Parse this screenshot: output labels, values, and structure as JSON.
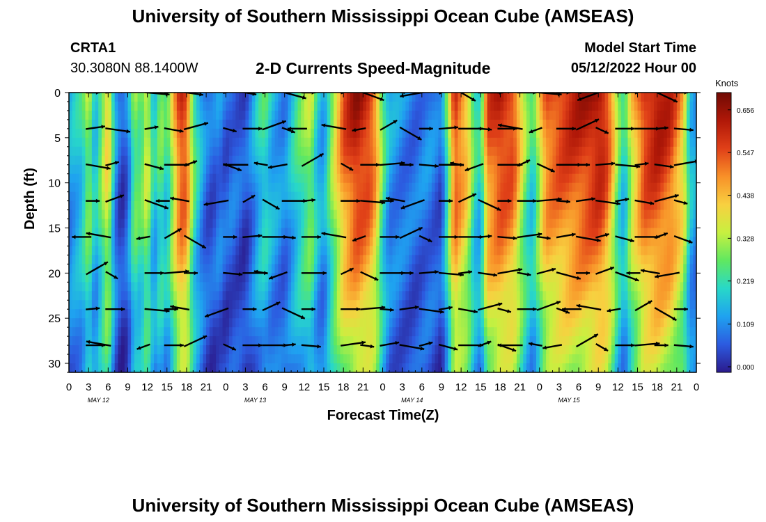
{
  "header": {
    "title": "University of Southern Mississippi Ocean Cube (AMSEAS)",
    "station_id": "CRTA1",
    "coordinates": "30.3080N  88.1400W",
    "model_label": "Model Start Time",
    "model_start": "05/12/2022 Hour 00"
  },
  "chart_data": {
    "type": "heatmap",
    "title": "2-D Currents Speed-Magnitude",
    "xlabel": "Forecast Time(Z)",
    "ylabel": "Depth (ft)",
    "x_tick_labels": [
      "0",
      "3",
      "6",
      "9",
      "12",
      "15",
      "18",
      "21",
      "0",
      "3",
      "6",
      "9",
      "12",
      "15",
      "18",
      "21",
      "0",
      "3",
      "6",
      "9",
      "12",
      "15",
      "18",
      "21",
      "0",
      "3",
      "6",
      "9",
      "12",
      "15",
      "18",
      "21",
      "0"
    ],
    "x_range_hours": [
      0,
      96
    ],
    "day_labels": [
      "MAY 12",
      "MAY 13",
      "MAY 14",
      "MAY 15"
    ],
    "y_tick_labels": [
      "0",
      "5",
      "10",
      "15",
      "20",
      "25",
      "30"
    ],
    "y_range_ft": [
      0,
      31
    ],
    "colorbar": {
      "unit": "Knots",
      "ticks": [
        "0.656",
        "0.547",
        "0.438",
        "0.328",
        "0.219",
        "0.109",
        "0.000"
      ],
      "range": [
        0,
        0.7
      ],
      "colors": [
        "#2b1a8c",
        "#2c5be0",
        "#1fa2f0",
        "#28d8c8",
        "#60e860",
        "#c8f040",
        "#f8d040",
        "#f89028",
        "#e04018",
        "#b01808",
        "#700a04"
      ]
    },
    "hour_profile": [
      [
        0,
        0.15
      ],
      [
        2,
        0.22
      ],
      [
        3,
        0.35
      ],
      [
        4,
        0.18
      ],
      [
        6,
        0.45
      ],
      [
        7,
        0.15
      ],
      [
        8,
        0.05
      ],
      [
        9,
        0.1
      ],
      [
        10,
        0.32
      ],
      [
        11,
        0.28
      ],
      [
        12,
        0.4
      ],
      [
        13,
        0.18
      ],
      [
        14,
        0.3
      ],
      [
        15,
        0.22
      ],
      [
        16,
        0.42
      ],
      [
        17,
        0.6
      ],
      [
        18,
        0.58
      ],
      [
        19,
        0.3
      ],
      [
        20,
        0.18
      ],
      [
        21,
        0.1
      ],
      [
        22,
        0.08
      ],
      [
        23,
        0.12
      ],
      [
        24,
        0.08
      ],
      [
        25,
        0.1
      ],
      [
        26,
        0.08
      ],
      [
        27,
        0.06
      ],
      [
        28,
        0.12
      ],
      [
        29,
        0.2
      ],
      [
        30,
        0.25
      ],
      [
        31,
        0.18
      ],
      [
        33,
        0.12
      ],
      [
        35,
        0.25
      ],
      [
        36,
        0.3
      ],
      [
        37,
        0.35
      ],
      [
        38,
        0.2
      ],
      [
        39,
        0.15
      ],
      [
        40,
        0.3
      ],
      [
        42,
        0.55
      ],
      [
        44,
        0.65
      ],
      [
        46,
        0.6
      ],
      [
        47,
        0.5
      ],
      [
        48,
        0.28
      ],
      [
        49,
        0.15
      ],
      [
        51,
        0.12
      ],
      [
        53,
        0.1
      ],
      [
        55,
        0.12
      ],
      [
        57,
        0.08
      ],
      [
        58,
        0.3
      ],
      [
        59,
        0.6
      ],
      [
        61,
        0.45
      ],
      [
        62,
        0.25
      ],
      [
        63,
        0.2
      ],
      [
        64,
        0.55
      ],
      [
        66,
        0.62
      ],
      [
        68,
        0.58
      ],
      [
        70,
        0.3
      ],
      [
        71,
        0.22
      ],
      [
        72,
        0.4
      ],
      [
        73,
        0.55
      ],
      [
        75,
        0.58
      ],
      [
        78,
        0.62
      ],
      [
        80,
        0.64
      ],
      [
        81,
        0.66
      ],
      [
        82,
        0.62
      ],
      [
        83,
        0.5
      ],
      [
        84,
        0.3
      ],
      [
        85,
        0.2
      ],
      [
        86,
        0.4
      ],
      [
        88,
        0.6
      ],
      [
        90,
        0.64
      ],
      [
        92,
        0.6
      ],
      [
        94,
        0.45
      ],
      [
        95,
        0.2
      ],
      [
        96,
        0.15
      ]
    ],
    "vector_rows_ft": [
      0,
      4,
      8,
      12,
      16,
      20,
      24,
      28
    ],
    "vector_times_h": [
      3,
      6,
      12,
      15,
      18,
      24,
      27,
      30,
      33,
      36,
      42,
      45,
      48,
      51,
      54,
      57,
      60,
      63,
      66,
      69,
      72,
      75,
      78,
      81,
      84,
      87,
      90,
      93
    ],
    "vector_angles": [
      0,
      5,
      -5,
      8,
      -8,
      10,
      -10,
      15,
      -15,
      0,
      20,
      -20,
      180,
      170,
      -170,
      30,
      -30,
      0,
      5,
      0,
      -5,
      0,
      170,
      200,
      0,
      25,
      -25,
      0
    ],
    "sample_vectors": [
      {
        "time_h": 15,
        "depth_ft": 28,
        "dir_deg": 10
      },
      {
        "time_h": 27,
        "depth_ft": 16,
        "dir_deg": 200
      }
    ]
  }
}
